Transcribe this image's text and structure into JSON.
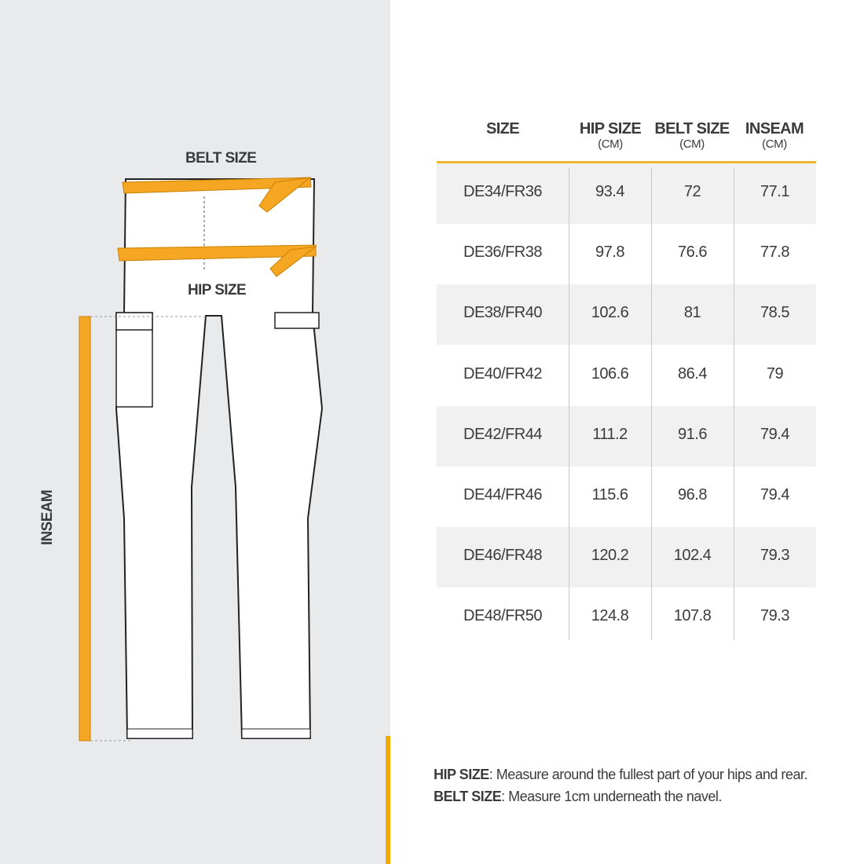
{
  "diagram": {
    "belt_label": "BELT SIZE",
    "hip_label": "HIP SIZE",
    "inseam_label": "INSEAM",
    "tape_color": "#f5a623"
  },
  "table": {
    "headers": [
      {
        "title": "SIZE",
        "unit": ""
      },
      {
        "title": "HIP SIZE",
        "unit": "(CM)"
      },
      {
        "title": "BELT SIZE",
        "unit": "(CM)"
      },
      {
        "title": "INSEAM",
        "unit": "(CM)"
      }
    ],
    "rows": [
      [
        "DE34/FR36",
        "93.4",
        "72",
        "77.1"
      ],
      [
        "DE36/FR38",
        "97.8",
        "76.6",
        "77.8"
      ],
      [
        "DE38/FR40",
        "102.6",
        "81",
        "78.5"
      ],
      [
        "DE40/FR42",
        "106.6",
        "86.4",
        "79"
      ],
      [
        "DE42/FR44",
        "111.2",
        "91.6",
        "79.4"
      ],
      [
        "DE44/FR46",
        "115.6",
        "96.8",
        "79.4"
      ],
      [
        "DE46/FR48",
        "120.2",
        "102.4",
        "79.3"
      ],
      [
        "DE48/FR50",
        "124.8",
        "107.8",
        "79.3"
      ]
    ]
  },
  "notes": [
    {
      "term": "HIP SIZE",
      "text": ": Measure around the fullest part of your hips and rear."
    },
    {
      "term": "BELT SIZE",
      "text": ": Measure 1cm underneath the navel."
    }
  ],
  "colors": {
    "accent": "#f2a900",
    "panel": "#e9eaeb"
  }
}
